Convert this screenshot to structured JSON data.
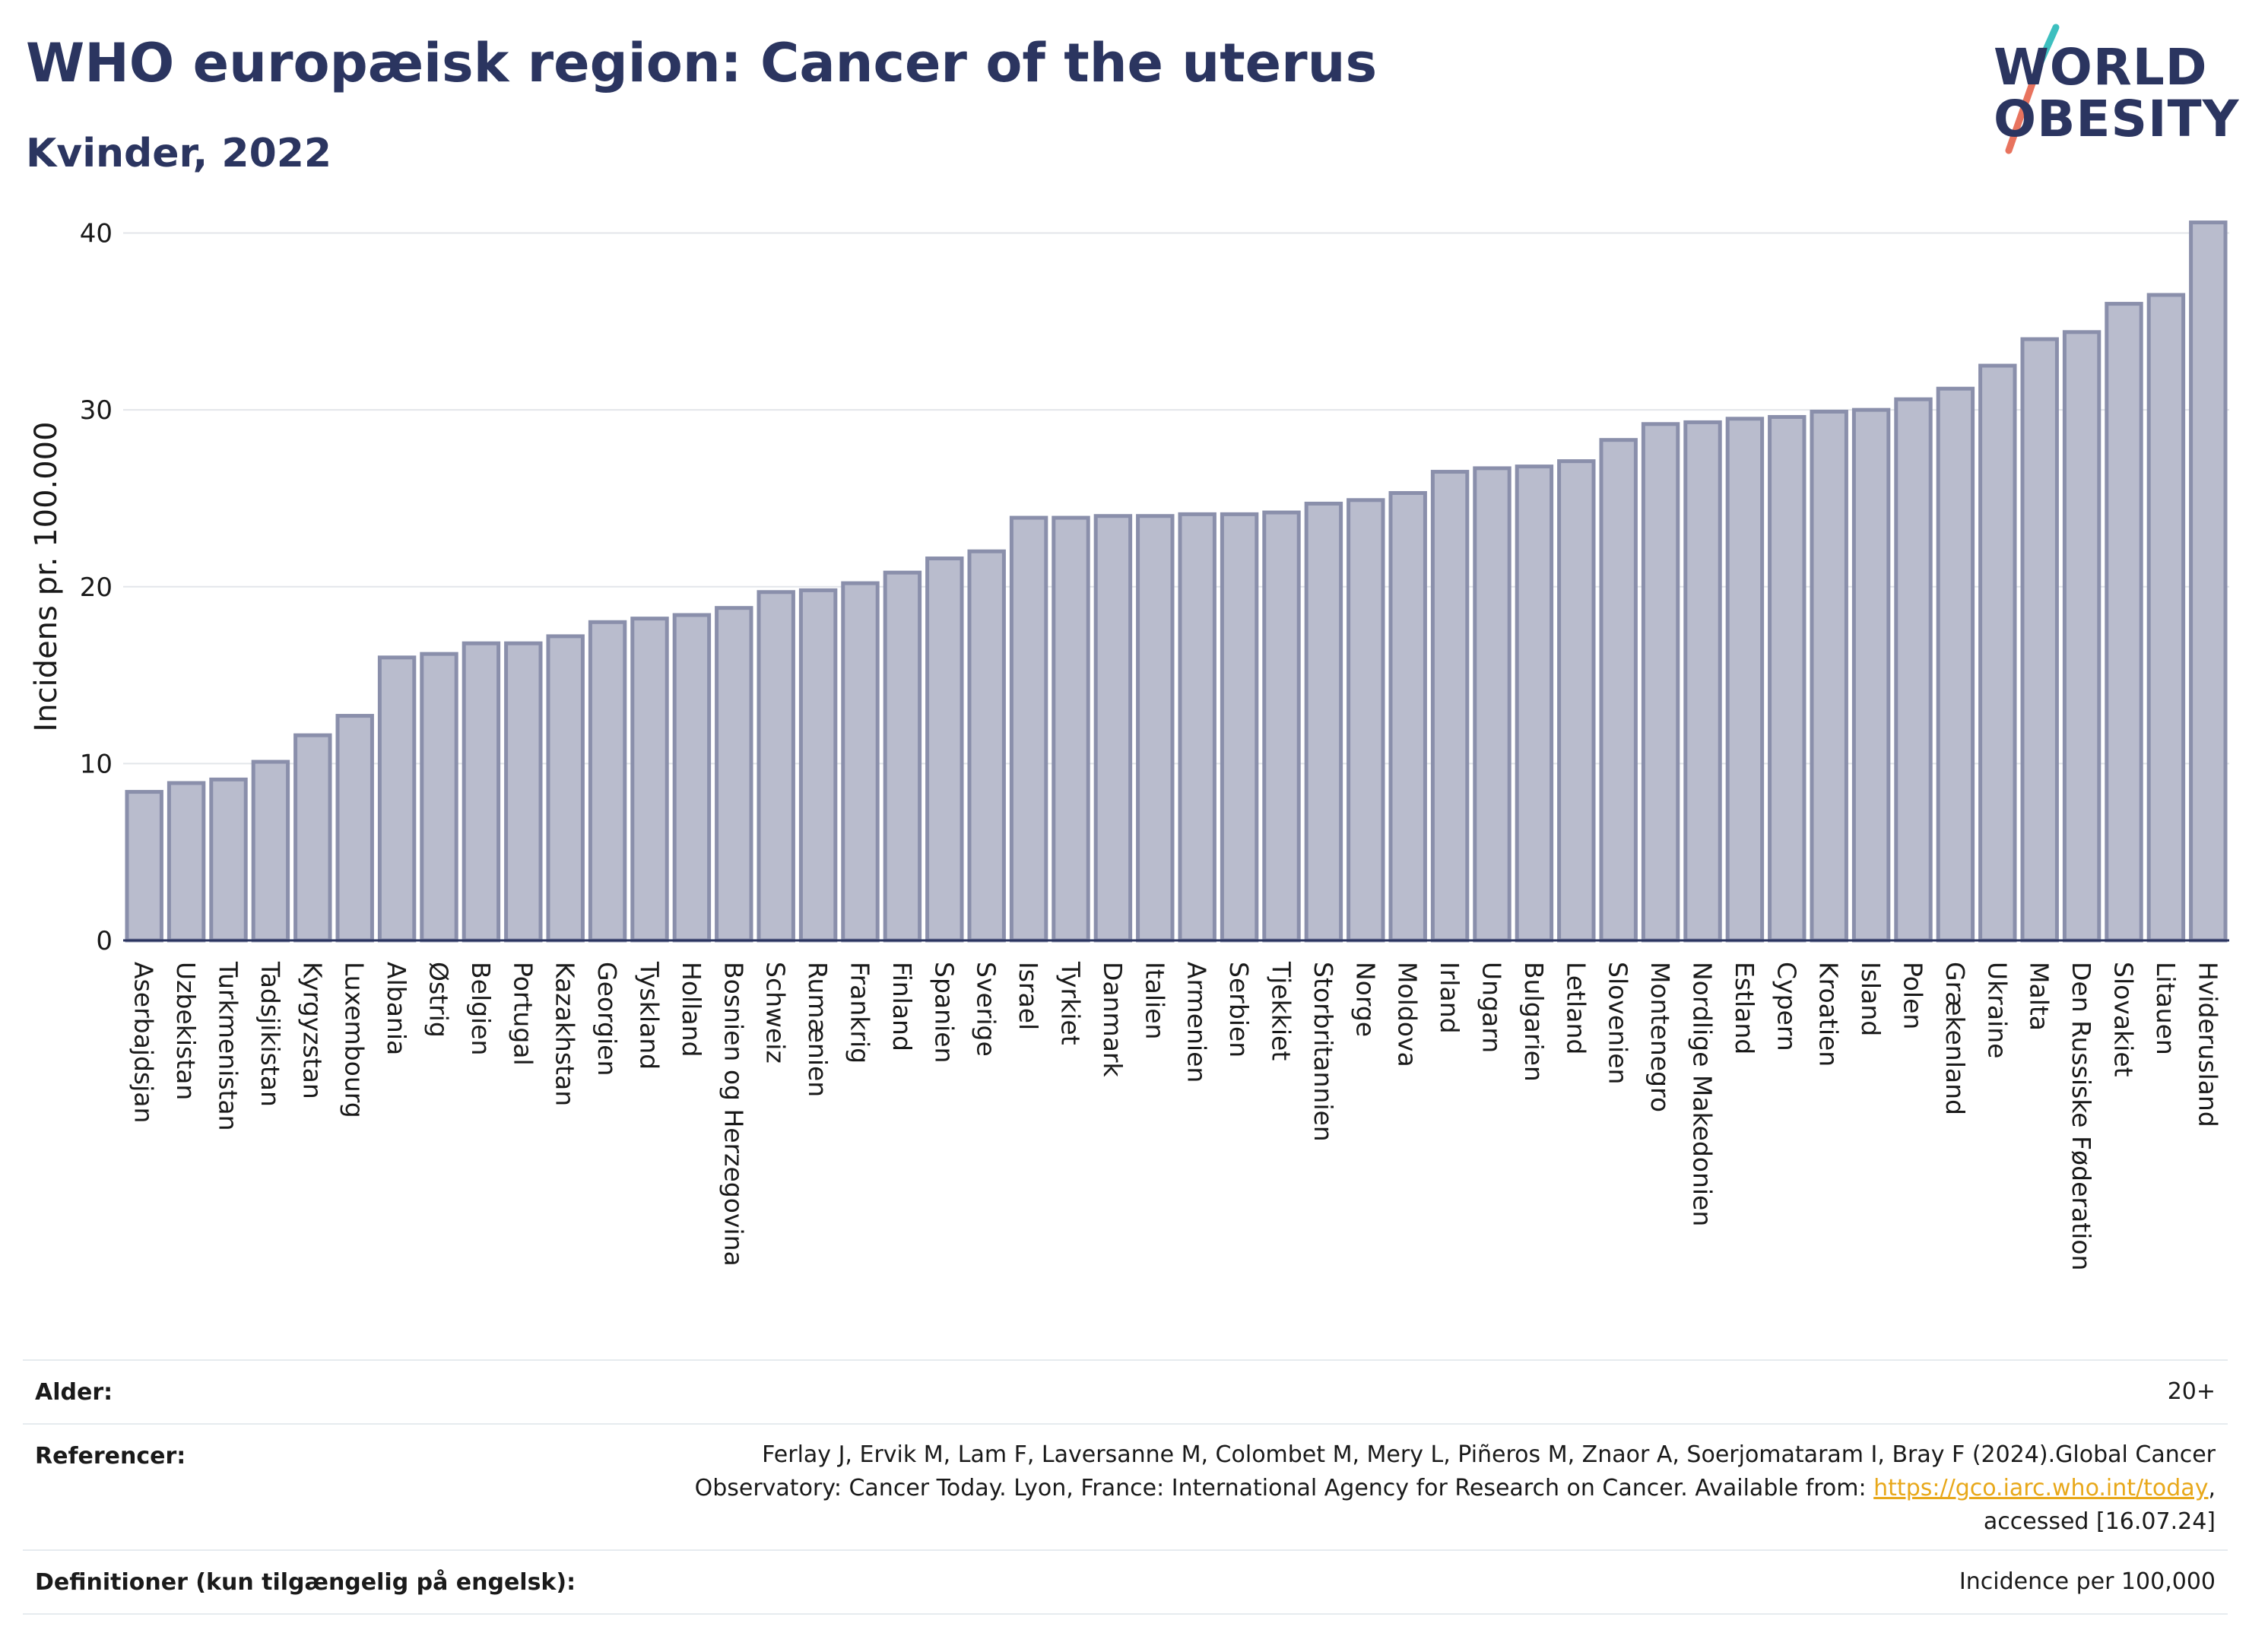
{
  "header": {
    "title": "WHO europæisk region: Cancer of the uterus",
    "subtitle": "Kvinder, 2022"
  },
  "logo": {
    "line1": "WORLD",
    "line2": "OBESITY",
    "slash_top_color": "#3dbfbf",
    "slash_bottom_color": "#e8735e"
  },
  "chart_data": {
    "type": "bar",
    "ylabel": "Incidens pr. 100.000",
    "xlabel": "",
    "ylim": [
      0,
      42
    ],
    "yticks": [
      0,
      10,
      20,
      30,
      40
    ],
    "grid": true,
    "bar_fill": "#b9bccd",
    "bar_stroke": "#8a8fab",
    "categories": [
      "Aserbajdsjan",
      "Uzbekistan",
      "Turkmenistan",
      "Tadsjikistan",
      "Kyrgyzstan",
      "Luxembourg",
      "Albania",
      "Østrig",
      "Belgien",
      "Portugal",
      "Kazakhstan",
      "Georgien",
      "Tyskland",
      "Holland",
      "Bosnien og Herzegovina",
      "Schweiz",
      "Rumænien",
      "Frankrig",
      "Finland",
      "Spanien",
      "Sverige",
      "Israel",
      "Tyrkiet",
      "Danmark",
      "Italien",
      "Armenien",
      "Serbien",
      "Tjekkiet",
      "Storbritannien",
      "Norge",
      "Moldova",
      "Irland",
      "Ungarn",
      "Bulgarien",
      "Letland",
      "Slovenien",
      "Montenegro",
      "Nordlige Makedonien",
      "Estland",
      "Cypern",
      "Kroatien",
      "Island",
      "Polen",
      "Grækenland",
      "Ukraine",
      "Malta",
      "Den Russiske Føderation",
      "Slovakiet",
      "Litauen",
      "Hviderusland"
    ],
    "values": [
      8.4,
      8.9,
      9.1,
      10.1,
      11.6,
      12.7,
      16.0,
      16.2,
      16.8,
      16.8,
      17.2,
      18.0,
      18.2,
      18.4,
      18.8,
      19.7,
      19.8,
      20.2,
      20.8,
      21.6,
      22.0,
      23.9,
      23.9,
      24.0,
      24.0,
      24.1,
      24.1,
      24.2,
      24.7,
      24.9,
      25.3,
      26.5,
      26.7,
      26.8,
      27.1,
      28.3,
      29.2,
      29.3,
      29.5,
      29.6,
      29.9,
      30.0,
      30.6,
      31.2,
      32.5,
      34.0,
      34.4,
      36.0,
      36.5,
      40.6
    ]
  },
  "info": {
    "age_label": "Alder:",
    "age_value": "20+",
    "ref_label": "Referencer:",
    "ref_line1": "Ferlay J, Ervik M, Lam F, Laversanne M, Colombet M, Mery L, Piñeros M, Znaor A, Soerjomataram I, Bray F (2024).Global Cancer",
    "ref_line2_pre": "Observatory: Cancer Today. Lyon, France: International Agency for Research on Cancer. Available from: ",
    "ref_link": "https://gco.iarc.who.int/today",
    "ref_line2_post": ",",
    "ref_line3": "accessed [16.07.24]",
    "def_label": "Definitioner (kun tilgængelig på engelsk):",
    "def_value": "Incidence per 100,000"
  }
}
